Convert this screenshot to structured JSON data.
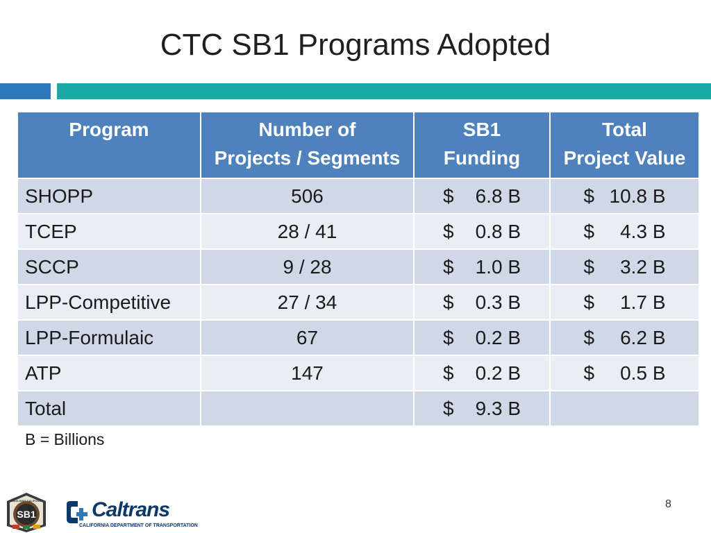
{
  "slide": {
    "title": "CTC SB1 Programs Adopted",
    "footnote": "B = Billions",
    "page_number": "8"
  },
  "table": {
    "headers": [
      [
        "Program"
      ],
      [
        "Number of",
        "Projects / Segments"
      ],
      [
        "SB1",
        "Funding"
      ],
      [
        "Total",
        "Project Value"
      ]
    ],
    "rows": [
      {
        "program": "SHOPP",
        "count": "506",
        "funding_sym": "$",
        "funding": "6.8 B",
        "value_sym": "$",
        "value": "10.8 B"
      },
      {
        "program": "TCEP",
        "count": "28 / 41",
        "funding_sym": "$",
        "funding": "0.8 B",
        "value_sym": "$",
        "value": "4.3 B"
      },
      {
        "program": "SCCP",
        "count": "9 / 28",
        "funding_sym": "$",
        "funding": "1.0 B",
        "value_sym": "$",
        "value": "3.2 B"
      },
      {
        "program": "LPP-Competitive",
        "count": "27 / 34",
        "funding_sym": "$",
        "funding": "0.3 B",
        "value_sym": "$",
        "value": "1.7 B"
      },
      {
        "program": "LPP-Formulaic",
        "count": "67",
        "funding_sym": "$",
        "funding": "0.2 B",
        "value_sym": "$",
        "value": "6.2 B"
      },
      {
        "program": "ATP",
        "count": "147",
        "funding_sym": "$",
        "funding": "0.2 B",
        "value_sym": "$",
        "value": "0.5 B"
      },
      {
        "program": "Total",
        "count": "",
        "funding_sym": "$",
        "funding": "9.3 B",
        "value_sym": "",
        "value": ""
      }
    ]
  },
  "logos": {
    "sb1_badge_text": "SB1",
    "sb1_ring_text": "REBUILDING CALIFORNIA",
    "caltrans_wordmark": "Caltrans",
    "caltrans_subtitle": "CALIFORNIA DEPARTMENT OF TRANSPORTATION"
  },
  "colors": {
    "header_blue": "#4f81bd",
    "row_dark": "#d0d8e8",
    "row_light": "#e9edf4",
    "accent_blue": "#2e79b9",
    "accent_teal": "#1aa8a4",
    "caltrans_navy": "#0b3a6a"
  }
}
